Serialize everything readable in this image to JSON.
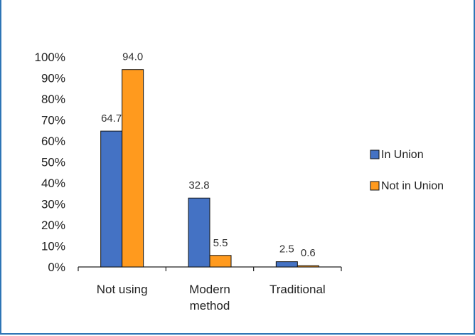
{
  "chart_data": {
    "type": "bar",
    "categories": [
      [
        "Not using"
      ],
      [
        "Modern",
        "method"
      ],
      [
        "Traditional"
      ]
    ],
    "series": [
      {
        "name": "In Union",
        "color": "#4472c4",
        "values": [
          64.7,
          32.8,
          2.5
        ],
        "labels": [
          "64.7",
          "32.8",
          "2.5"
        ]
      },
      {
        "name": "Not in Union",
        "color": "#ff9a1e",
        "values": [
          94.0,
          5.5,
          0.6
        ],
        "labels": [
          "94.0",
          "5.5",
          "0.6"
        ]
      }
    ],
    "ylim": [
      0,
      100
    ],
    "yticks": [
      0,
      10,
      20,
      30,
      40,
      50,
      60,
      70,
      80,
      90,
      100
    ],
    "ytick_labels": [
      "0%",
      "10%",
      "20%",
      "30%",
      "40%",
      "50%",
      "60%",
      "70%",
      "80%",
      "90%",
      "100%"
    ],
    "legend_position": "right",
    "grid": false
  }
}
